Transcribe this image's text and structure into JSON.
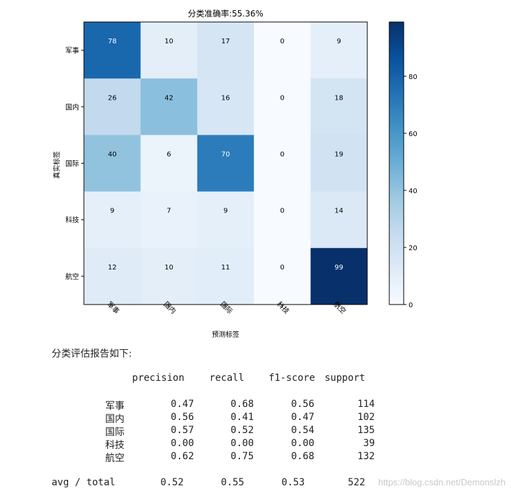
{
  "chart_data": {
    "type": "heatmap",
    "title": "分类准确率:55.36%",
    "xlabel": "预测标签",
    "ylabel": "真实标签",
    "row_labels": [
      "军事",
      "国内",
      "国际",
      "科技",
      "航空"
    ],
    "col_labels": [
      "军事",
      "国内",
      "国际",
      "科技",
      "航空"
    ],
    "values": [
      [
        78,
        10,
        17,
        0,
        9
      ],
      [
        26,
        42,
        16,
        0,
        18
      ],
      [
        40,
        6,
        70,
        0,
        19
      ],
      [
        9,
        7,
        9,
        0,
        14
      ],
      [
        12,
        10,
        11,
        0,
        99
      ]
    ],
    "colormap": "Blues",
    "vmin": 0,
    "vmax": 99,
    "colorbar_ticks": [
      "0",
      "20",
      "40",
      "60",
      "80"
    ],
    "colorbar_tick_values": [
      0,
      20,
      40,
      60,
      80
    ]
  },
  "report": {
    "title": "分类评估报告如下:",
    "headers": [
      "precision",
      "recall",
      "f1-score",
      "support"
    ],
    "rows": [
      {
        "label": "军事",
        "precision": "0.47",
        "recall": "0.68",
        "f1": "0.56",
        "support": "114"
      },
      {
        "label": "国内",
        "precision": "0.56",
        "recall": "0.41",
        "f1": "0.47",
        "support": "102"
      },
      {
        "label": "国际",
        "precision": "0.57",
        "recall": "0.52",
        "f1": "0.54",
        "support": "135"
      },
      {
        "label": "科技",
        "precision": "0.00",
        "recall": "0.00",
        "f1": "0.00",
        "support": "39"
      },
      {
        "label": "航空",
        "precision": "0.62",
        "recall": "0.75",
        "f1": "0.68",
        "support": "132"
      }
    ],
    "avg": {
      "label": "avg / total",
      "precision": "0.52",
      "recall": "0.55",
      "f1": "0.53",
      "support": "522"
    }
  },
  "watermark": "https://blog.csdn.net/Demonslzh"
}
